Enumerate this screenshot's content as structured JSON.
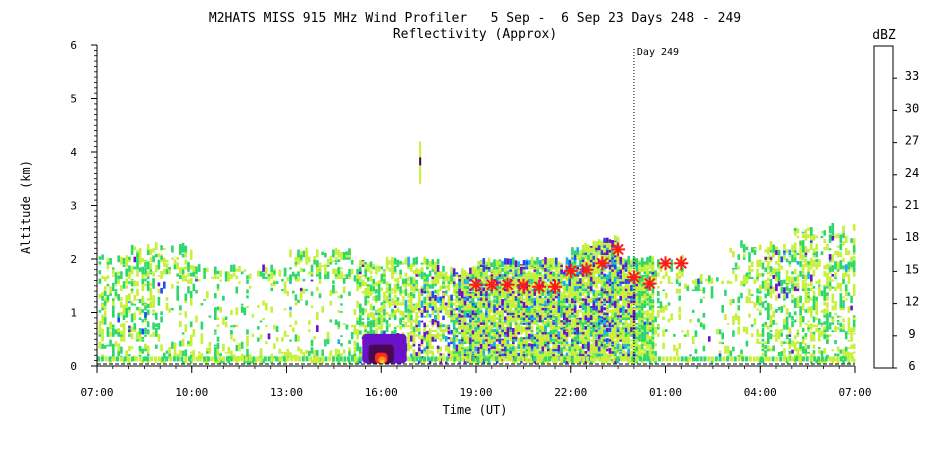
{
  "chart_data": {
    "type": "heatmap",
    "title": "M2HATS MISS 915 MHz Wind Profiler   5 Sep -  6 Sep 23 Days 248 - 249",
    "subtitle": "Reflectivity (Approx)",
    "xlabel": "Time (UT)",
    "ylabel": "Altitude (km)",
    "x_ticks": [
      "07:00",
      "10:00",
      "13:00",
      "16:00",
      "19:00",
      "22:00",
      "01:00",
      "04:00",
      "07:00"
    ],
    "x_range_hours": [
      0,
      24
    ],
    "y_ticks": [
      0,
      1,
      2,
      3,
      4,
      5,
      6
    ],
    "ylim": [
      0,
      6
    ],
    "day_marker": {
      "label": "Day 249",
      "x_hours": 17
    },
    "colorbar": {
      "title": "dBZ",
      "ticks": [
        6,
        9,
        12,
        15,
        18,
        21,
        24,
        27,
        30,
        33
      ],
      "colors": [
        "#c6f03a",
        "#2cd86a",
        "#1aaef0",
        "#1f4af2",
        "#6a12c8",
        "#4a0852",
        "#ff2a1a",
        "#ff8a1a",
        "#ffc40a",
        "#ffff2a"
      ]
    },
    "boundary_layer_heights": {
      "marker_color": "#ff1a1a",
      "points": [
        {
          "x_hours": 12.0,
          "y_km": 1.52
        },
        {
          "x_hours": 12.5,
          "y_km": 1.52
        },
        {
          "x_hours": 13.0,
          "y_km": 1.52
        },
        {
          "x_hours": 13.5,
          "y_km": 1.5
        },
        {
          "x_hours": 14.0,
          "y_km": 1.48
        },
        {
          "x_hours": 14.5,
          "y_km": 1.48
        },
        {
          "x_hours": 15.0,
          "y_km": 1.78
        },
        {
          "x_hours": 15.5,
          "y_km": 1.8
        },
        {
          "x_hours": 16.0,
          "y_km": 1.92
        },
        {
          "x_hours": 16.5,
          "y_km": 2.18
        },
        {
          "x_hours": 17.0,
          "y_km": 1.66
        },
        {
          "x_hours": 17.5,
          "y_km": 1.54
        },
        {
          "x_hours": 18.0,
          "y_km": 1.92
        },
        {
          "x_hours": 18.5,
          "y_km": 1.92
        }
      ]
    }
  }
}
